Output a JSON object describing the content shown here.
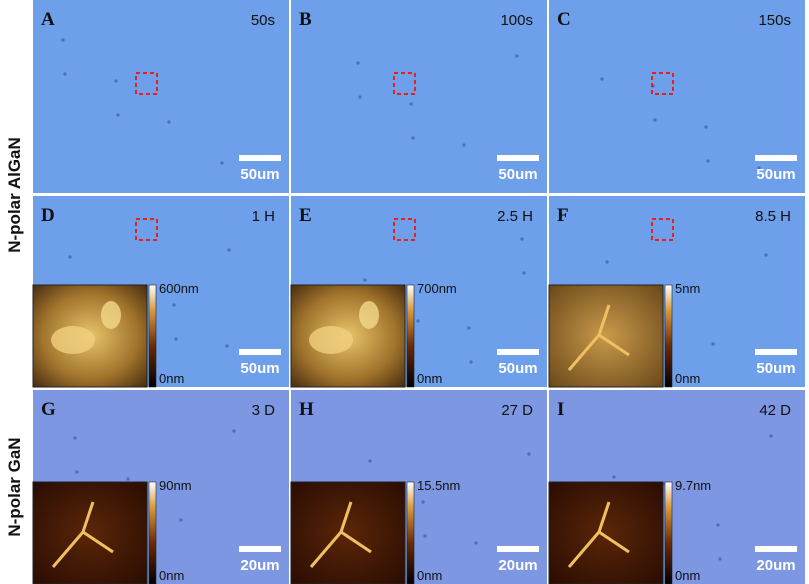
{
  "row_labels": [
    "N-polar AlGaN",
    "N-polar GaN"
  ],
  "panels": [
    {
      "letter": "A",
      "time": "50s",
      "scale_bar": "50um"
    },
    {
      "letter": "B",
      "time": "100s",
      "scale_bar": "50um"
    },
    {
      "letter": "C",
      "time": "150s",
      "scale_bar": "50um"
    },
    {
      "letter": "D",
      "time": "1 H",
      "scale_bar": "50um",
      "inset": {
        "max": "600nm",
        "min": "0nm"
      }
    },
    {
      "letter": "E",
      "time": "2.5 H",
      "scale_bar": "50um",
      "inset": {
        "max": "700nm",
        "min": "0nm"
      }
    },
    {
      "letter": "F",
      "time": "8.5 H",
      "scale_bar": "50um",
      "inset": {
        "max": "5nm",
        "min": "0nm"
      }
    },
    {
      "letter": "G",
      "time": "3 D",
      "scale_bar": "20um",
      "inset": {
        "max": "90nm",
        "min": "0nm"
      }
    },
    {
      "letter": "H",
      "time": "27 D",
      "scale_bar": "20um",
      "inset": {
        "max": "15.5nm",
        "min": "0nm"
      }
    },
    {
      "letter": "I",
      "time": "42 D",
      "scale_bar": "20um",
      "inset": {
        "max": "9.7nm",
        "min": "0nm"
      }
    }
  ]
}
